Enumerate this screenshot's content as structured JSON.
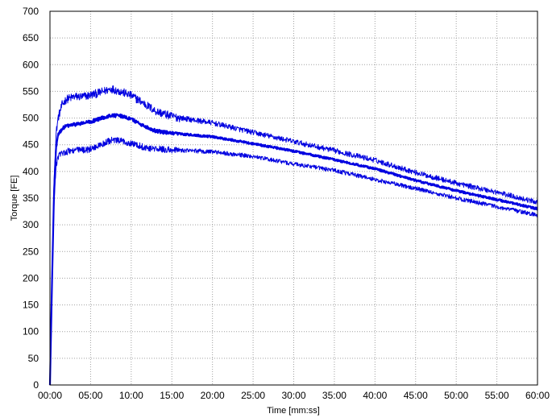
{
  "chart_data": {
    "type": "line",
    "title": "",
    "xlabel": "Time [mm:ss]",
    "ylabel": "Torque [FE]",
    "xlim": [
      0,
      60
    ],
    "ylim": [
      0,
      700
    ],
    "xticks": [
      "00:00",
      "05:00",
      "10:00",
      "15:00",
      "20:00",
      "25:00",
      "30:00",
      "35:00",
      "40:00",
      "45:00",
      "50:00",
      "55:00",
      "60:00"
    ],
    "yticks": [
      "0",
      "50",
      "100",
      "150",
      "200",
      "250",
      "300",
      "350",
      "400",
      "450",
      "500",
      "550",
      "600",
      "650",
      "700"
    ],
    "grid": true,
    "line_color": "#0000e0",
    "series": [
      {
        "x": [
          0,
          0.25,
          0.5,
          0.75,
          1,
          1.5,
          2,
          3,
          4,
          5,
          6,
          7,
          7.5,
          8,
          9,
          10,
          11,
          12,
          13,
          15,
          17,
          20,
          25,
          30,
          35,
          40,
          45,
          50,
          55,
          60
        ],
        "values": [
          0,
          200,
          380,
          470,
          500,
          525,
          535,
          540,
          540,
          543,
          547,
          552,
          555,
          553,
          548,
          542,
          533,
          523,
          513,
          503,
          498,
          491,
          473,
          456,
          439,
          421,
          398,
          378,
          361,
          342
        ]
      },
      {
        "x": [
          0,
          0.25,
          0.5,
          0.75,
          1,
          1.5,
          2,
          3,
          4,
          5,
          6,
          7,
          7.5,
          8,
          9,
          10,
          11,
          12,
          13,
          15,
          17,
          20,
          25,
          30,
          35,
          40,
          45,
          50,
          55,
          60
        ],
        "values": [
          0,
          190,
          360,
          445,
          468,
          480,
          485,
          488,
          490,
          493,
          498,
          503,
          505,
          505,
          503,
          498,
          490,
          482,
          476,
          471,
          469,
          465,
          452,
          438,
          422,
          405,
          383,
          364,
          347,
          330
        ]
      },
      {
        "x": [
          0,
          0.25,
          0.5,
          0.75,
          1,
          1.5,
          2,
          3,
          4,
          5,
          6,
          7,
          7.5,
          8,
          9,
          10,
          11,
          12,
          13,
          15,
          17,
          20,
          25,
          30,
          35,
          40,
          45,
          50,
          55,
          60
        ],
        "values": [
          0,
          180,
          340,
          410,
          428,
          435,
          437,
          440,
          440,
          442,
          448,
          455,
          458,
          458,
          456,
          453,
          448,
          444,
          442,
          440,
          439,
          437,
          428,
          414,
          402,
          385,
          368,
          350,
          334,
          318
        ]
      }
    ]
  }
}
